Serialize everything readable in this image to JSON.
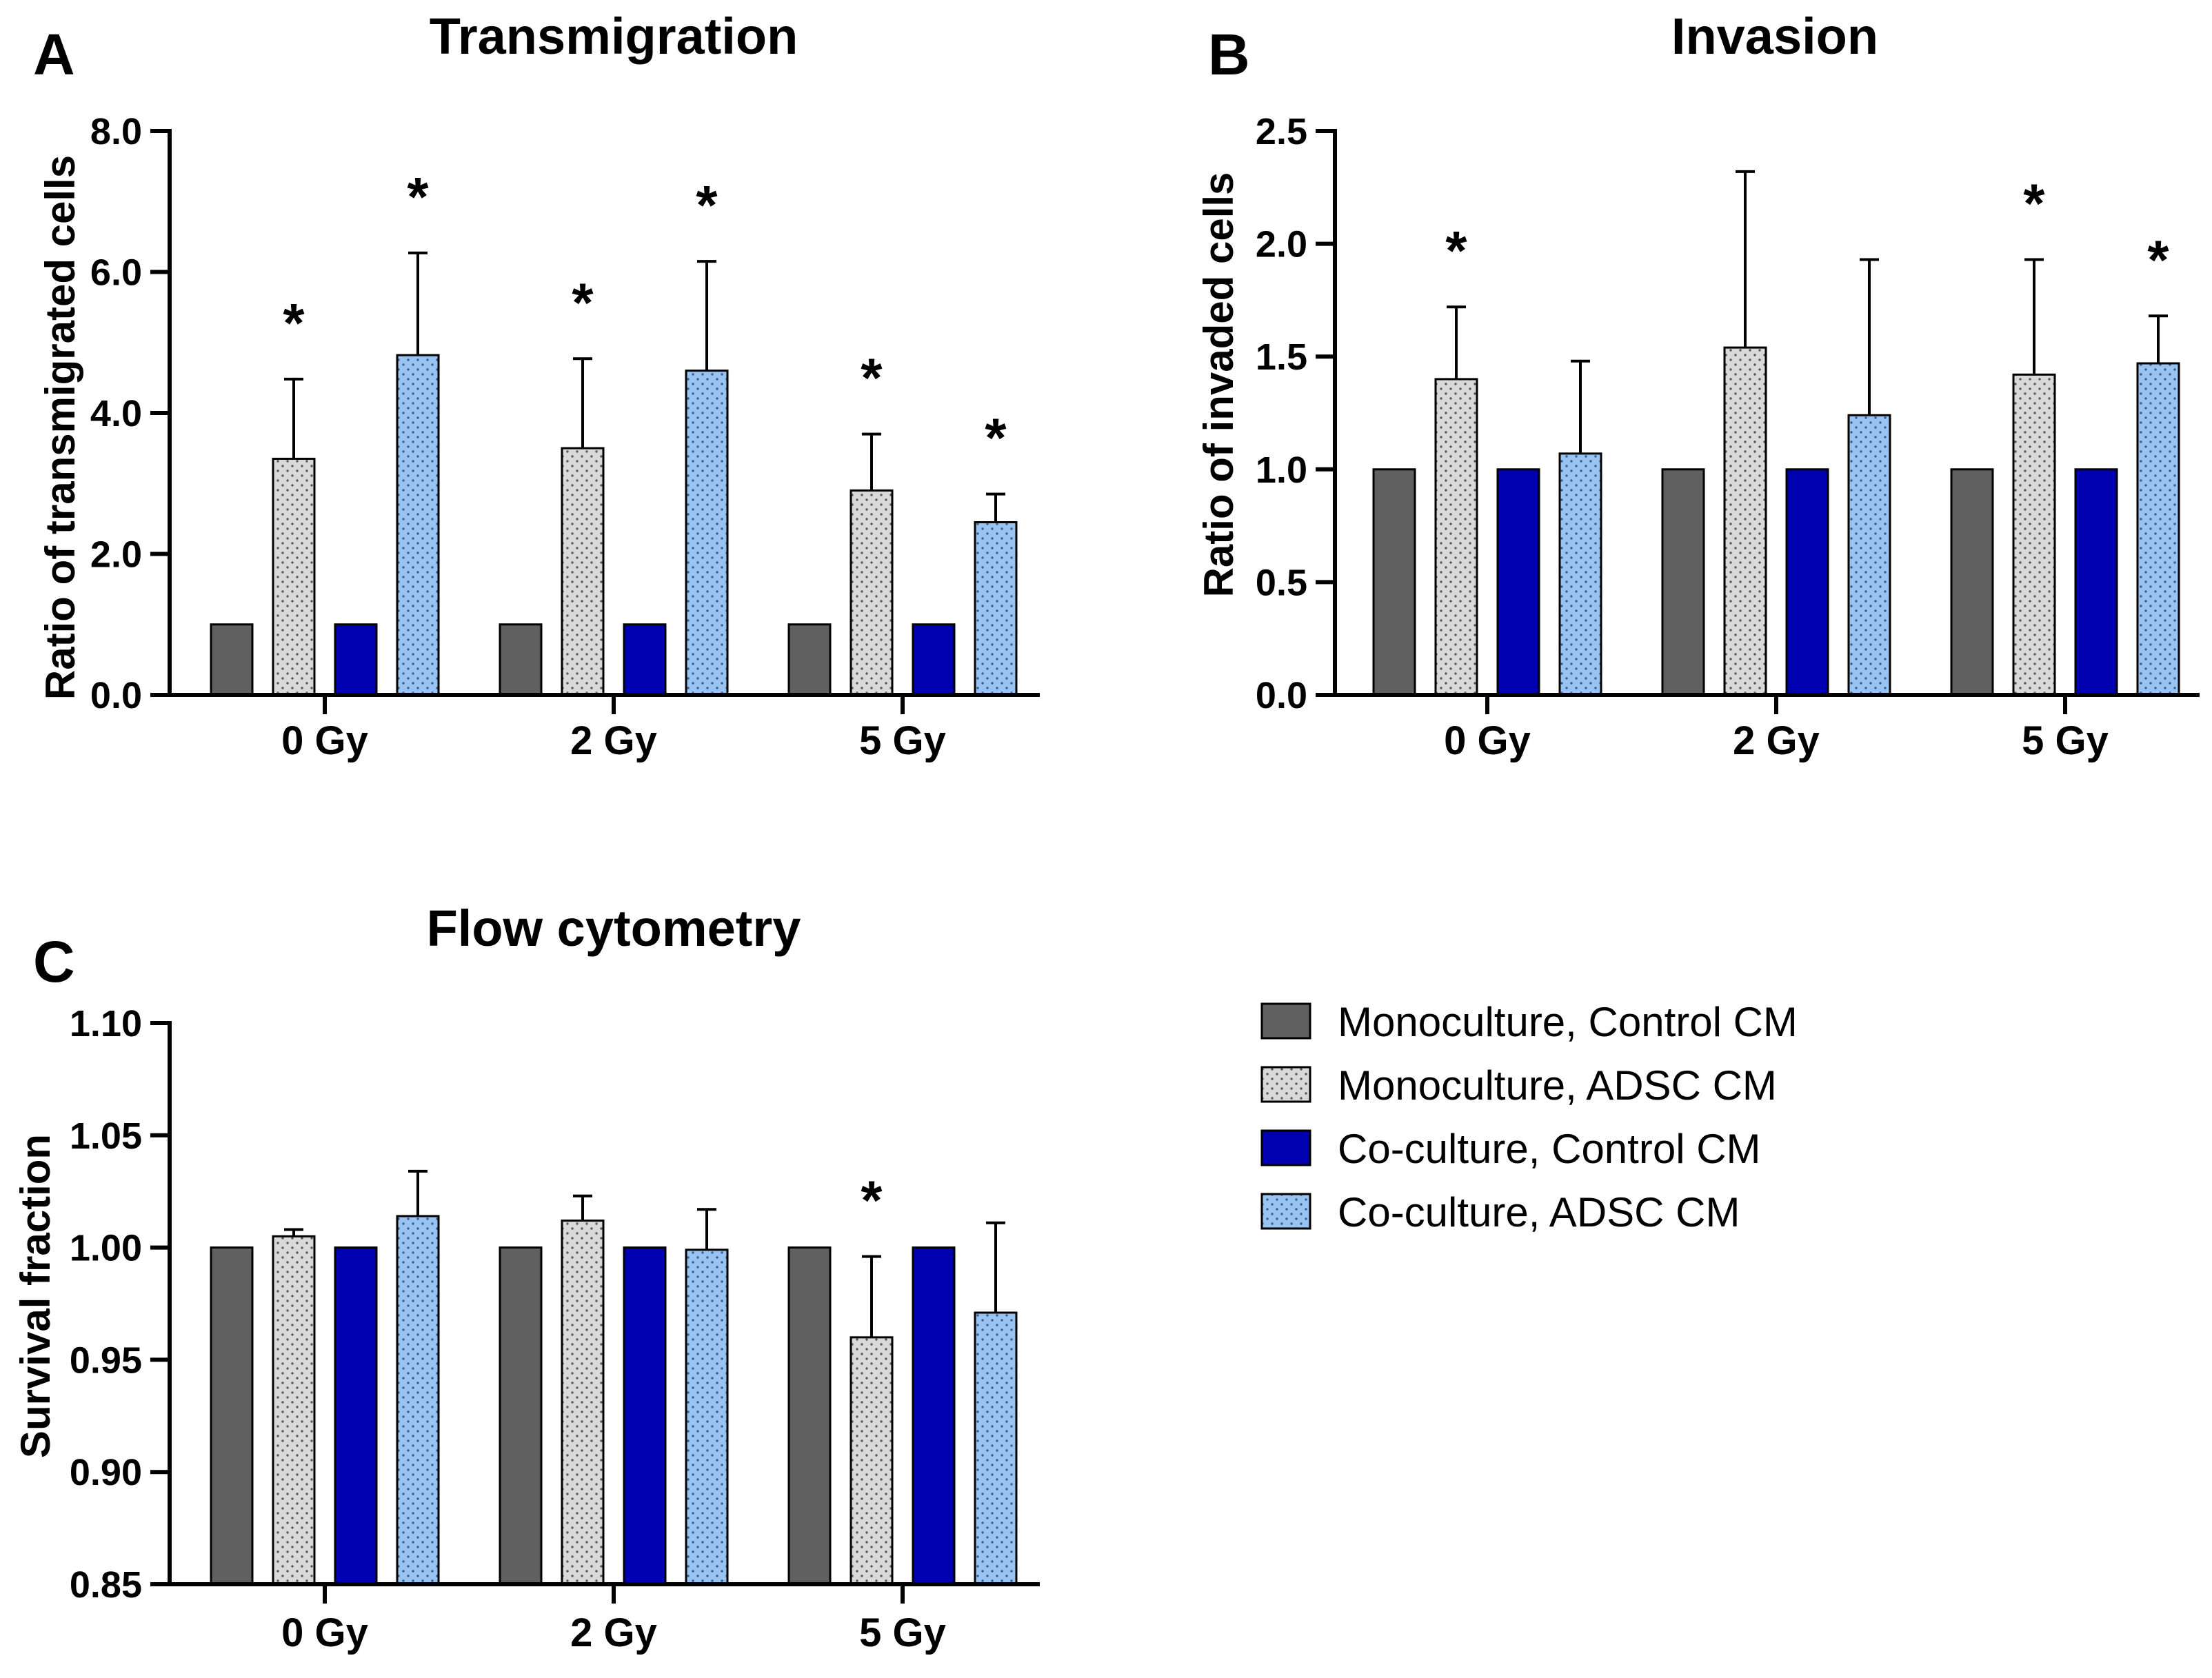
{
  "chart_data": [
    {
      "type": "bar",
      "panel": "A",
      "title": "Transmigration",
      "ylabel": "Ratio of transmigrated cells",
      "xlabel": "",
      "ylim": [
        0,
        8
      ],
      "yticks": [
        "0.0",
        "2.0",
        "4.0",
        "6.0",
        "8.0"
      ],
      "ytick_values": [
        0,
        2,
        4,
        6,
        8
      ],
      "categories": [
        "0 Gy",
        "2 Gy",
        "5 Gy"
      ],
      "series": [
        {
          "name": "Monoculture, Control CM",
          "values": [
            1.0,
            1.0,
            1.0
          ],
          "errors": [
            0,
            0,
            0
          ],
          "significant": [
            false,
            false,
            false
          ]
        },
        {
          "name": "Monoculture, ADSC CM",
          "values": [
            3.35,
            3.5,
            2.9
          ],
          "errors": [
            1.13,
            1.27,
            0.8
          ],
          "significant": [
            true,
            true,
            true
          ]
        },
        {
          "name": "Co-culture, Control CM",
          "values": [
            1.0,
            1.0,
            1.0
          ],
          "errors": [
            0,
            0,
            0
          ],
          "significant": [
            false,
            false,
            false
          ]
        },
        {
          "name": "Co-culture, ADSC CM",
          "values": [
            4.82,
            4.6,
            2.45
          ],
          "errors": [
            1.45,
            1.55,
            0.4
          ],
          "significant": [
            true,
            true,
            true
          ]
        }
      ]
    },
    {
      "type": "bar",
      "panel": "B",
      "title": "Invasion",
      "ylabel": "Ratio of invaded cells",
      "xlabel": "",
      "ylim": [
        0,
        2.5
      ],
      "yticks": [
        "0.0",
        "0.5",
        "1.0",
        "1.5",
        "2.0",
        "2.5"
      ],
      "ytick_values": [
        0,
        0.5,
        1.0,
        1.5,
        2.0,
        2.5
      ],
      "categories": [
        "0 Gy",
        "2 Gy",
        "5 Gy"
      ],
      "series": [
        {
          "name": "Monoculture, Control CM",
          "values": [
            1.0,
            1.0,
            1.0
          ],
          "errors": [
            0,
            0,
            0
          ],
          "significant": [
            false,
            false,
            false
          ]
        },
        {
          "name": "Monoculture, ADSC CM",
          "values": [
            1.4,
            1.54,
            1.42
          ],
          "errors": [
            0.32,
            0.78,
            0.51
          ],
          "significant": [
            true,
            false,
            true
          ]
        },
        {
          "name": "Co-culture, Control CM",
          "values": [
            1.0,
            1.0,
            1.0
          ],
          "errors": [
            0,
            0,
            0
          ],
          "significant": [
            false,
            false,
            false
          ]
        },
        {
          "name": "Co-culture, ADSC CM",
          "values": [
            1.07,
            1.24,
            1.47
          ],
          "errors": [
            0.41,
            0.69,
            0.21
          ],
          "significant": [
            false,
            false,
            true
          ]
        }
      ]
    },
    {
      "type": "bar",
      "panel": "C",
      "title": "Flow cytometry",
      "ylabel": "Survival fraction",
      "xlabel": "",
      "ylim": [
        0.85,
        1.1
      ],
      "yticks": [
        "0.85",
        "0.90",
        "0.95",
        "1.00",
        "1.05",
        "1.10"
      ],
      "ytick_values": [
        0.85,
        0.9,
        0.95,
        1.0,
        1.05,
        1.1
      ],
      "categories": [
        "0 Gy",
        "2 Gy",
        "5 Gy"
      ],
      "series": [
        {
          "name": "Monoculture, Control CM",
          "values": [
            1.0,
            1.0,
            1.0
          ],
          "errors": [
            0,
            0,
            0
          ],
          "significant": [
            false,
            false,
            false
          ]
        },
        {
          "name": "Monoculture, ADSC CM",
          "values": [
            1.005,
            1.012,
            0.96
          ],
          "errors": [
            0.003,
            0.011,
            0.036
          ],
          "significant": [
            false,
            false,
            true
          ]
        },
        {
          "name": "Co-culture, Control CM",
          "values": [
            1.0,
            1.0,
            1.0
          ],
          "errors": [
            0,
            0,
            0
          ],
          "significant": [
            false,
            false,
            false
          ]
        },
        {
          "name": "Co-culture, ADSC CM",
          "values": [
            1.014,
            0.999,
            0.971
          ],
          "errors": [
            0.02,
            0.018,
            0.04
          ],
          "significant": [
            false,
            false,
            false
          ]
        }
      ]
    }
  ],
  "significance_marker": "*",
  "legend": {
    "items": [
      {
        "label": "Monoculture, Control CM",
        "style": "solid-dark-gray"
      },
      {
        "label": "Monoculture, ADSC CM",
        "style": "dotted-light-gray"
      },
      {
        "label": "Co-culture, Control CM",
        "style": "solid-dark-blue"
      },
      {
        "label": "Co-culture, ADSC CM",
        "style": "dotted-light-blue"
      }
    ]
  },
  "colors": {
    "mono_control": "#606060",
    "mono_adsc": "#d9d9d9",
    "co_control": "#0000b0",
    "co_adsc": "#99c4f2",
    "dot": "#5a5a5a",
    "axis": "#000000"
  }
}
